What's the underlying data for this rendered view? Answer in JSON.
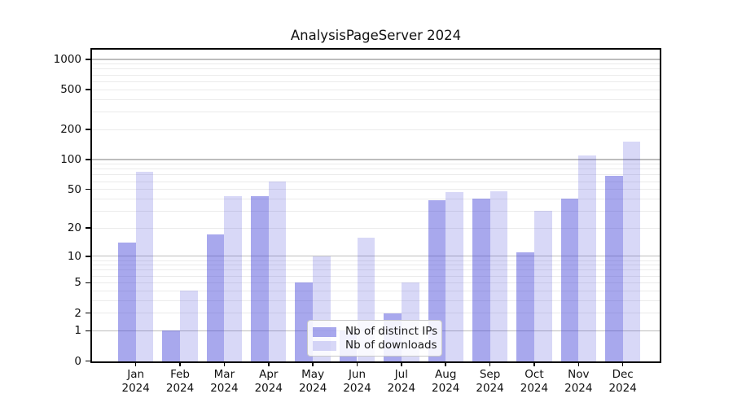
{
  "chart_data": {
    "type": "bar",
    "title": "AnalysisPageServer 2024",
    "categories": [
      "Jan",
      "Feb",
      "Mar",
      "Apr",
      "May",
      "Jun",
      "Jul",
      "Aug",
      "Sep",
      "Oct",
      "Nov",
      "Dec"
    ],
    "x_tick_year": "2024",
    "series": [
      {
        "name": "Nb of distinct IPs",
        "key": "distinct-ips",
        "color": "rgba(62,62,215,0.45)",
        "values": [
          14,
          1,
          17,
          43,
          5,
          1,
          2,
          39,
          40,
          11,
          40,
          68
        ]
      },
      {
        "name": "Nb of downloads",
        "key": "downloads",
        "color": "rgba(62,62,215,0.20)",
        "values": [
          75,
          4,
          43,
          60,
          10,
          16,
          5,
          47,
          48,
          30,
          110,
          150
        ]
      }
    ],
    "yscale": "log10(1+v)",
    "ylim": [
      0,
      1250
    ],
    "y_ticks": [
      0,
      1,
      2,
      5,
      10,
      20,
      50,
      100,
      200,
      500,
      1000
    ],
    "y_major_gridlines": [
      1,
      10,
      100,
      1000
    ],
    "grid": "horizontal, major and minor",
    "legend_position": "inside, lower center-left",
    "xlabel": "",
    "ylabel": ""
  }
}
